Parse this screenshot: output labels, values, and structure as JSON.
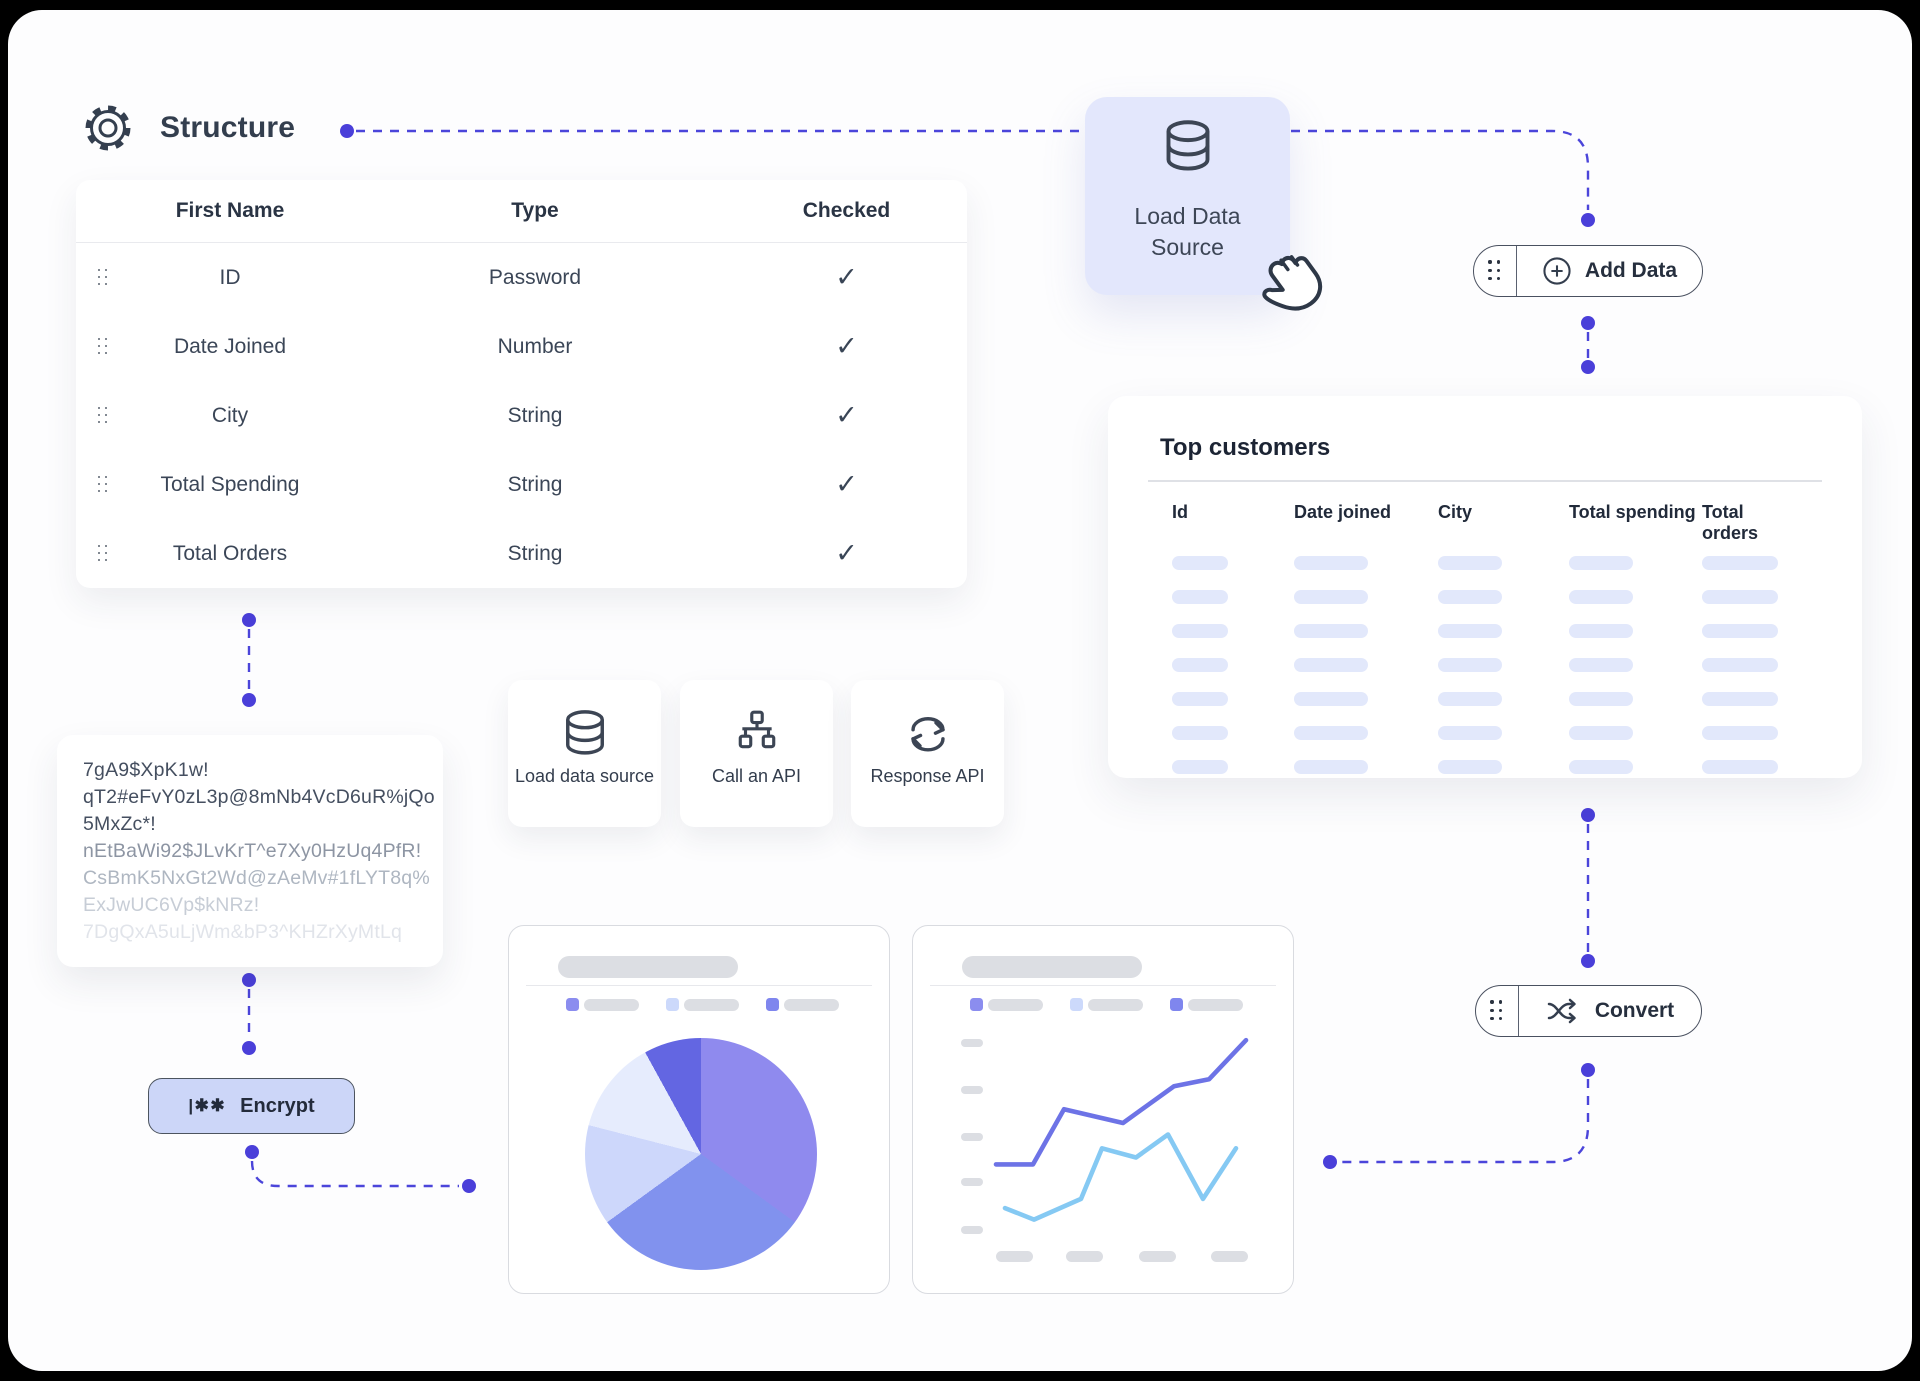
{
  "page": {
    "background": "#000000",
    "canvas": "#fdfdfe"
  },
  "accent": {
    "connector_line": "#4b45da",
    "connector_dot": "#4a3fd9",
    "lavender_card": "#e3e7fc",
    "lavender_button": "#ccd6f8",
    "skeleton_gray": "#dcdee3",
    "skeleton_lavender": "#e2e8fb"
  },
  "header": {
    "title": "Structure",
    "icon": "gear-icon"
  },
  "structure_panel": {
    "columns": [
      "First Name",
      "Type",
      "Checked"
    ],
    "check_glyph": "✓",
    "rows": [
      {
        "name": "ID",
        "type": "Password",
        "checked": true
      },
      {
        "name": "Date Joined",
        "type": "Number",
        "checked": true
      },
      {
        "name": "City",
        "type": "String",
        "checked": true
      },
      {
        "name": "Total Spending",
        "type": "String",
        "checked": true
      },
      {
        "name": "Total Orders",
        "type": "String",
        "checked": true
      }
    ]
  },
  "load_data_source_card": {
    "label": "Load Data Source",
    "label_line1": "Load Data",
    "label_line2": "Source",
    "icon": "database-icon",
    "cursor": "hand-grab-cursor"
  },
  "add_data_button": {
    "label": "Add Data",
    "icon": "plus-circle-icon"
  },
  "convert_button": {
    "label": "Convert",
    "icon": "shuffle-icon"
  },
  "encrypt_button": {
    "label": "Encrypt",
    "icon_glyph": "|✱✱"
  },
  "top_customers": {
    "title": "Top customers",
    "columns": [
      "Id",
      "Date joined",
      "City",
      "Total spending",
      "Total orders"
    ],
    "skeleton_rows": 7
  },
  "encrypted_output": {
    "lines": [
      "7gA9$XpK1w!",
      "qT2#eFvY0zL3p@8mNb4VcD6uR%jQo",
      "5MxZc*!",
      "nEtBaWi92$JLvKrT^e7Xy0HzUq4PfR!",
      "CsBmK5NxGt2Wd@zAeMv#1fLYT8q%",
      "ExJwUC6Vp$kNRz!",
      "7DgQxA5uLjWm&bP3^KHZrXyMtLq"
    ]
  },
  "palette_cards": [
    {
      "label": "Load data source",
      "icon": "database-icon"
    },
    {
      "label": "Call an API",
      "icon": "api-tree-icon"
    },
    {
      "label": "Response API",
      "icon": "refresh-icon"
    }
  ],
  "chart_data": [
    {
      "type": "pie",
      "title": null,
      "title_skeleton": true,
      "values": [
        35,
        30,
        14,
        13,
        8
      ],
      "colors": [
        "#8f8aee",
        "#8192ee",
        "#cdd7fb",
        "#e6ecfd",
        "#6366e2"
      ],
      "legend": {
        "labels_skeleton": true,
        "colors": [
          "#8b8def",
          "#ccd9fb",
          "#7f86ee"
        ],
        "position": "top"
      }
    },
    {
      "type": "line",
      "title": null,
      "title_skeleton": true,
      "ylim": [
        0,
        100
      ],
      "grid": false,
      "legend": {
        "labels_skeleton": true,
        "colors": [
          "#8b8def",
          "#ccd9fb",
          "#7f86ee"
        ],
        "position": "top"
      },
      "series": [
        {
          "name": "series-purple",
          "color": "#6d73e6",
          "x": [
            0,
            14.8,
            27.2,
            50.8,
            71.2,
            85.2,
            100
          ],
          "y": [
            42,
            42,
            66,
            60,
            76,
            79,
            96
          ]
        },
        {
          "name": "series-blue",
          "color": "#85c9f3",
          "x": [
            3.6,
            15.2,
            34,
            42.4,
            56,
            68.8,
            82.8,
            96
          ],
          "y": [
            23,
            18,
            27,
            49,
            45,
            55,
            27,
            49
          ]
        }
      ]
    }
  ]
}
